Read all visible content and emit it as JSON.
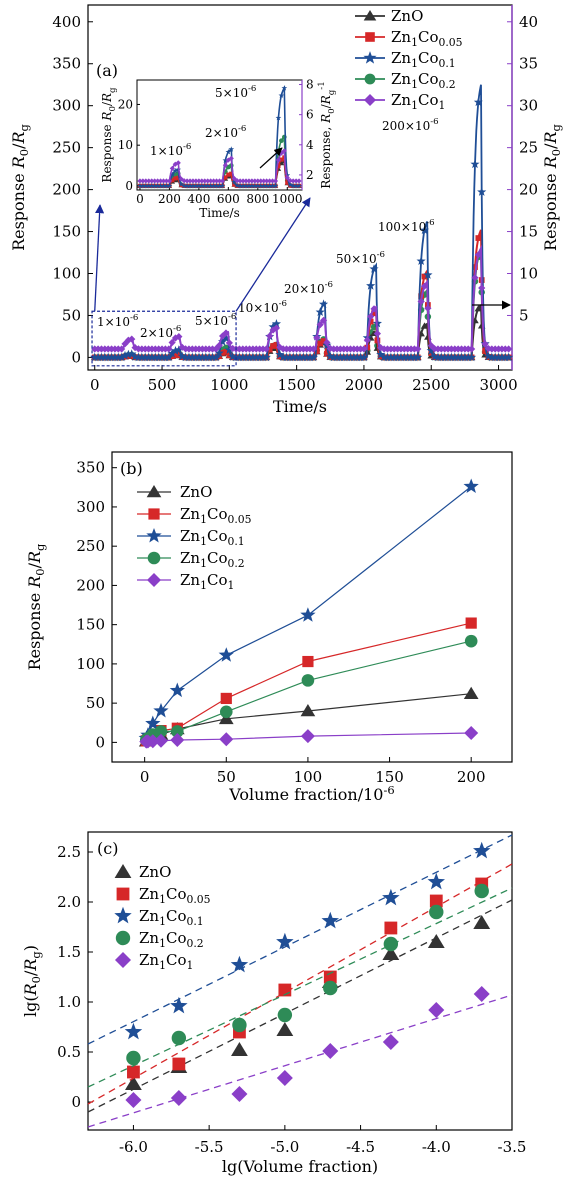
{
  "chart_data": [
    {
      "panel": "(a)",
      "type": "line",
      "xlabel": "Time/s",
      "ylabel": "Response R0/Rg",
      "y2label": "Response R0/Rg",
      "xlim": [
        -50,
        3100
      ],
      "ylim": [
        -15,
        420
      ],
      "y2lim": [
        -1.5,
        42
      ],
      "xticks": [
        0,
        500,
        1000,
        1500,
        2000,
        2500,
        3000
      ],
      "yticks": [
        0,
        50,
        100,
        150,
        200,
        250,
        300,
        350,
        400
      ],
      "y2ticks": [
        5,
        10,
        15,
        20,
        25,
        30,
        35,
        40
      ],
      "legend": [
        "ZnO",
        "Zn1Co0.05",
        "Zn1Co0.1",
        "Zn1Co0.2",
        "Zn1Co1"
      ],
      "annotations": [
        "1×10^-6",
        "2×10^-6",
        "5×10^-6",
        "10×10^-6",
        "20×10^-6",
        "50×10^-6",
        "100×10^-6",
        "200×10^-6"
      ],
      "pulse_times": [
        210,
        560,
        920,
        1280,
        1640,
        2020,
        2400,
        2800
      ],
      "series": [
        {
          "name": "ZnO",
          "color": "#333333",
          "peaks": [
            1.5,
            2.5,
            6,
            12,
            18,
            30,
            40,
            62
          ]
        },
        {
          "name": "Zn1Co0.05",
          "color": "#d62728",
          "peaks": [
            2,
            3,
            7,
            15,
            20,
            55,
            103,
            152
          ]
        },
        {
          "name": "Zn1Co0.1",
          "color": "#1f4e96",
          "peaks": [
            4,
            9,
            24,
            40,
            65,
            110,
            162,
            325
          ]
        },
        {
          "name": "Zn1Co0.2",
          "color": "#2e8b57",
          "peaks": [
            3,
            5,
            12,
            15,
            22,
            38,
            80,
            128
          ]
        },
        {
          "name": "Zn1Co1",
          "color": "#8a3fc8",
          "peaks_right_axis": [
            1.2,
            1.5,
            2,
            2.5,
            3.5,
            5,
            8,
            12
          ]
        }
      ],
      "inset": {
        "xlabel": "Time/s",
        "ylabel": "Response R0/Rg",
        "y2label": "Response, R0/Rg^-1",
        "xlim": [
          -20,
          1100
        ],
        "ylim": [
          -1,
          26
        ],
        "y2lim": [
          1,
          8.3
        ],
        "xticks": [
          0,
          200,
          400,
          600,
          800,
          1000
        ],
        "yticks": [
          0,
          10,
          20
        ],
        "y2ticks": [
          2,
          4,
          6,
          8
        ],
        "annotations": [
          "1×10^-6",
          "2×10^-6",
          "5×10^-6"
        ]
      }
    },
    {
      "panel": "(b)",
      "type": "line",
      "xlabel": "Volume fraction/10^-6",
      "ylabel": "Response R0/Rg",
      "xlim": [
        -20,
        225
      ],
      "ylim": [
        -25,
        370
      ],
      "xticks": [
        0,
        50,
        100,
        150,
        200
      ],
      "yticks": [
        0,
        50,
        100,
        150,
        200,
        250,
        300,
        350
      ],
      "x": [
        1,
        2,
        5,
        10,
        20,
        50,
        100,
        200
      ],
      "series": [
        {
          "name": "ZnO",
          "color": "#333333",
          "marker": "triangle",
          "values": [
            1.5,
            2.5,
            5,
            10,
            17,
            30,
            40,
            62
          ]
        },
        {
          "name": "Zn1Co0.05",
          "color": "#d62728",
          "marker": "square",
          "values": [
            2,
            3,
            7,
            15,
            18,
            56,
            103,
            152
          ]
        },
        {
          "name": "Zn1Co0.1",
          "color": "#1f4e96",
          "marker": "star",
          "values": [
            5,
            9,
            24,
            40,
            66,
            111,
            162,
            326
          ]
        },
        {
          "name": "Zn1Co0.2",
          "color": "#2e8b57",
          "marker": "circle",
          "values": [
            3,
            5,
            10,
            14,
            14,
            39,
            79,
            129
          ]
        },
        {
          "name": "Zn1Co1",
          "color": "#8a3fc8",
          "marker": "diamond",
          "values": [
            1,
            1.2,
            1.5,
            2,
            3,
            4,
            8,
            12
          ]
        }
      ]
    },
    {
      "panel": "(c)",
      "type": "scatter",
      "xlabel": "lg(Volume fraction)",
      "ylabel": "lg(R0/Rg)",
      "xlim": [
        -6.3,
        -3.5
      ],
      "ylim": [
        -0.28,
        2.7
      ],
      "xticks": [
        -6.0,
        -5.5,
        -5.0,
        -4.5,
        -4.0,
        -3.5
      ],
      "yticks": [
        0,
        0.5,
        1.0,
        1.5,
        2.0,
        2.5
      ],
      "x": [
        -6.0,
        -5.7,
        -5.3,
        -5.0,
        -4.7,
        -4.3,
        -4.0,
        -3.7
      ],
      "series": [
        {
          "name": "ZnO",
          "color": "#333333",
          "marker": "triangle",
          "values": [
            0.18,
            0.35,
            0.52,
            0.72,
            1.2,
            1.48,
            1.6,
            1.79
          ],
          "fit": [
            -6.3,
            -0.1,
            -3.5,
            2.02
          ]
        },
        {
          "name": "Zn1Co0.05",
          "color": "#d62728",
          "marker": "square",
          "values": [
            0.3,
            0.38,
            0.7,
            1.12,
            1.25,
            1.74,
            2.01,
            2.18
          ],
          "fit": [
            -6.3,
            -0.02,
            -3.5,
            2.38
          ]
        },
        {
          "name": "Zn1Co0.1",
          "color": "#1f4e96",
          "marker": "star",
          "values": [
            0.7,
            0.96,
            1.37,
            1.6,
            1.81,
            2.04,
            2.2,
            2.51
          ],
          "fit": [
            -6.3,
            0.58,
            -3.5,
            2.67
          ]
        },
        {
          "name": "Zn1Co0.2",
          "color": "#2e8b57",
          "marker": "circle",
          "values": [
            0.44,
            0.64,
            0.77,
            0.87,
            1.14,
            1.58,
            1.9,
            2.11
          ],
          "fit": [
            -6.3,
            0.15,
            -3.5,
            2.14
          ]
        },
        {
          "name": "Zn1Co1",
          "color": "#8a3fc8",
          "marker": "diamond",
          "values": [
            0.02,
            0.04,
            0.08,
            0.24,
            0.51,
            0.6,
            0.92,
            1.08
          ],
          "fit": [
            -6.3,
            -0.25,
            -3.5,
            1.07
          ]
        }
      ]
    }
  ]
}
